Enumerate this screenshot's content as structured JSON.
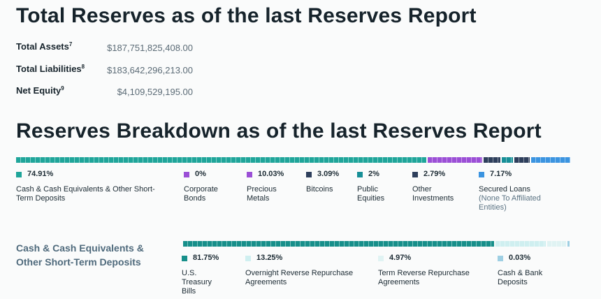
{
  "titles": {
    "total_reserves": "Total Reserves as of the last Reserves Report",
    "breakdown": "Reserves Breakdown as of the last Reserves Report"
  },
  "stats": [
    {
      "label": "Total Assets",
      "sup": "7",
      "value": "$187,751,825,408.00"
    },
    {
      "label": "Total Liabilities",
      "sup": "8",
      "value": "$183,642,296,213.00"
    },
    {
      "label": "Net Equity",
      "sup": "9",
      "value": "$4,109,529,195.00"
    }
  ],
  "breakdown": [
    {
      "pct": "74.91%",
      "value": 74.91,
      "label": "Cash & Cash Equivalents & Other Short-Term Deposits",
      "sub": "",
      "color": "#1fa59a"
    },
    {
      "pct": "0%",
      "value": 0,
      "label": "Corporate Bonds",
      "sub": "",
      "color": "#9b4fd6"
    },
    {
      "pct": "10.03%",
      "value": 10.03,
      "label": "Precious Metals",
      "sub": "",
      "color": "#9b4fd6"
    },
    {
      "pct": "3.09%",
      "value": 3.09,
      "label": "Bitcoins",
      "sub": "",
      "color": "#2e3f5c"
    },
    {
      "pct": "2%",
      "value": 2,
      "label": "Public Equities",
      "sub": "",
      "color": "#178f97"
    },
    {
      "pct": "2.79%",
      "value": 2.79,
      "label": "Other Investments",
      "sub": "",
      "color": "#2e3f5c"
    },
    {
      "pct": "7.17%",
      "value": 7.17,
      "label": "Secured Loans",
      "sub": "(None To Affiliated Entities)",
      "color": "#3b94e0"
    }
  ],
  "cash_breakdown": {
    "heading": "Cash & Cash Equivalents & Other Short-Term Deposits",
    "items": [
      {
        "pct": "81.75%",
        "value": 81.75,
        "label": "U.S. Treasury Bills",
        "color": "#178f8a"
      },
      {
        "pct": "13.25%",
        "value": 13.25,
        "label": "Overnight Reverse Repurchase Agreements",
        "color": "#cfeff0"
      },
      {
        "pct": "4.97%",
        "value": 4.97,
        "label": "Term Reverse Repurchase Agreements",
        "color": "#e0f3f3"
      },
      {
        "pct": "0.03%",
        "value": 0.03,
        "label": "Cash & Bank Deposits",
        "color": "#9ecfe3"
      }
    ]
  }
}
